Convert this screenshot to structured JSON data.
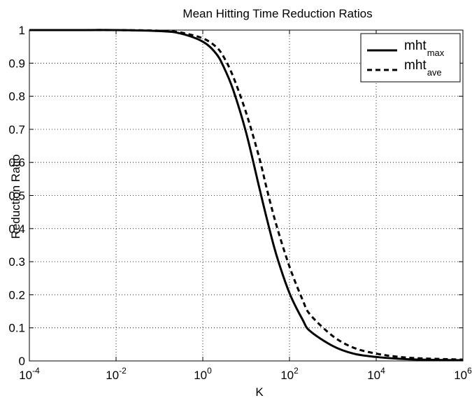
{
  "chart_data": {
    "type": "line",
    "title": "Mean Hitting Time Reduction Ratios",
    "xlabel": "K",
    "ylabel": "Reduction Ratio",
    "x_scale": "log",
    "xlim": [
      0.0001,
      1000000
    ],
    "ylim": [
      0,
      1
    ],
    "grid": true,
    "legend_position": "top-right",
    "x_ticks": [
      {
        "base": "10",
        "exp": "-4"
      },
      {
        "base": "10",
        "exp": "-2"
      },
      {
        "base": "10",
        "exp": "0"
      },
      {
        "base": "10",
        "exp": "2"
      },
      {
        "base": "10",
        "exp": "4"
      },
      {
        "base": "10",
        "exp": "6"
      }
    ],
    "y_ticks": [
      "0",
      "0.1",
      "0.2",
      "0.3",
      "0.4",
      "0.5",
      "0.6",
      "0.7",
      "0.8",
      "0.9",
      "1"
    ],
    "series": [
      {
        "name": "mht",
        "subscript": "max",
        "style": "solid",
        "x": [
          0.0001,
          0.001,
          0.01,
          0.1,
          0.3,
          1,
          2,
          3,
          5,
          10,
          20,
          30,
          50,
          100,
          200,
          300,
          1000,
          3000,
          10000,
          30000,
          100000,
          1000000
        ],
        "y": [
          1.0,
          1.0,
          1.0,
          0.997,
          0.99,
          0.965,
          0.93,
          0.89,
          0.82,
          0.69,
          0.525,
          0.43,
          0.32,
          0.205,
          0.125,
          0.09,
          0.045,
          0.022,
          0.012,
          0.007,
          0.004,
          0.002
        ]
      },
      {
        "name": "mht",
        "subscript": "ave",
        "style": "dashed",
        "x": [
          0.0001,
          0.001,
          0.01,
          0.1,
          0.3,
          1,
          2,
          3,
          5,
          10,
          20,
          30,
          50,
          100,
          200,
          300,
          1000,
          3000,
          10000,
          30000,
          100000,
          1000000
        ],
        "y": [
          1.0,
          1.0,
          1.0,
          0.998,
          0.993,
          0.975,
          0.95,
          0.92,
          0.86,
          0.75,
          0.615,
          0.52,
          0.41,
          0.285,
          0.185,
          0.14,
          0.075,
          0.04,
          0.022,
          0.013,
          0.008,
          0.004
        ]
      }
    ]
  }
}
